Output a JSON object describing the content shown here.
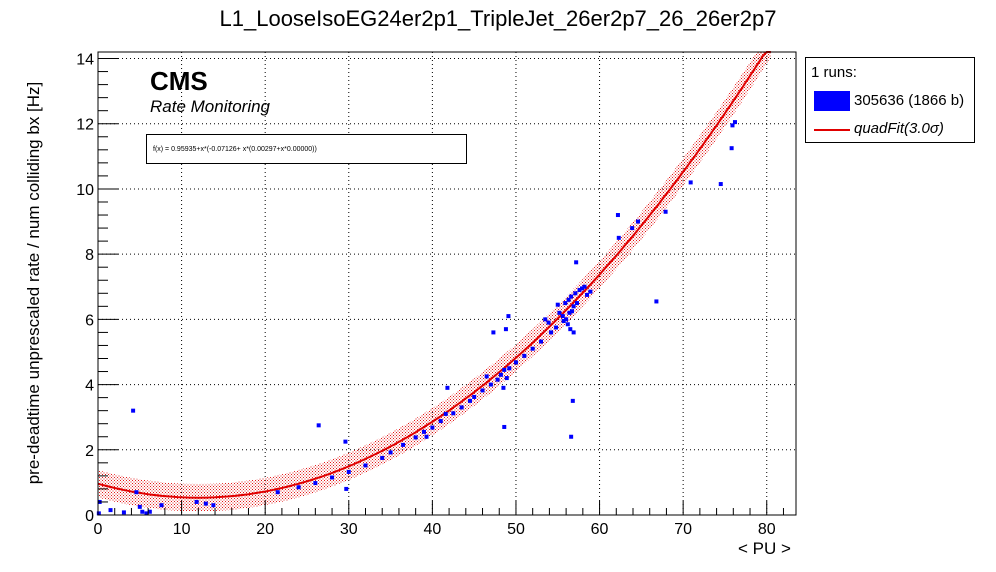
{
  "title": "L1_LooseIsoEG24er2p1_TripleJet_26er2p7_26_26er2p7",
  "cms_label": "CMS",
  "cms_sublabel": "Rate Monitoring",
  "fit_formula": "f(x) = 0.95935+x*(-0.07126+ x*(0.00297+x*0.00000))",
  "legend": {
    "header": "1 runs:",
    "entries": [
      {
        "label": "305636 (1866 b)",
        "color": "#0000ff"
      },
      {
        "label": "quadFit(3.0σ)",
        "color": "#e00000"
      }
    ]
  },
  "chart_data": {
    "type": "scatter",
    "xlabel": "< PU >",
    "ylabel": "pre-deadtime unprescaled rate / num colliding bx [Hz]",
    "xlim": [
      0,
      83.5
    ],
    "ylim": [
      0,
      14.2
    ],
    "xticks": [
      0,
      10,
      20,
      30,
      40,
      50,
      60,
      70,
      80
    ],
    "yticks": [
      0,
      2,
      4,
      6,
      8,
      10,
      12,
      14
    ],
    "grid": true,
    "fit": {
      "name": "quadFit(3.0σ)",
      "a": 0.95935,
      "b": -0.07126,
      "c": 0.00297,
      "d": 0.0,
      "band": 0.42,
      "color": "#e00000"
    },
    "series": [
      {
        "name": "305636 (1866 b)",
        "color": "#0000ff",
        "points": [
          [
            0.1,
            0.05
          ],
          [
            0.2,
            0.4
          ],
          [
            1.5,
            0.15
          ],
          [
            3.1,
            0.08
          ],
          [
            4.2,
            3.2
          ],
          [
            4.6,
            0.7
          ],
          [
            5.0,
            0.25
          ],
          [
            5.3,
            0.1
          ],
          [
            5.8,
            0.05
          ],
          [
            6.2,
            0.1
          ],
          [
            7.6,
            0.3
          ],
          [
            11.8,
            0.4
          ],
          [
            12.9,
            0.35
          ],
          [
            13.8,
            0.3
          ],
          [
            21.5,
            0.7
          ],
          [
            26.4,
            2.75
          ],
          [
            29.6,
            2.25
          ],
          [
            29.7,
            0.8
          ],
          [
            24.0,
            0.85
          ],
          [
            26.0,
            0.98
          ],
          [
            28.0,
            1.15
          ],
          [
            30.0,
            1.32
          ],
          [
            32.0,
            1.52
          ],
          [
            34.0,
            1.75
          ],
          [
            35.0,
            1.92
          ],
          [
            36.5,
            2.15
          ],
          [
            38.0,
            2.38
          ],
          [
            39.0,
            2.55
          ],
          [
            39.3,
            2.4
          ],
          [
            40.0,
            2.68
          ],
          [
            41.0,
            2.88
          ],
          [
            41.6,
            3.1
          ],
          [
            41.8,
            3.9
          ],
          [
            42.5,
            3.12
          ],
          [
            43.5,
            3.3
          ],
          [
            44.5,
            3.5
          ],
          [
            45.0,
            3.62
          ],
          [
            46.0,
            3.82
          ],
          [
            46.5,
            4.25
          ],
          [
            47.0,
            4.0
          ],
          [
            47.3,
            5.6
          ],
          [
            47.8,
            4.15
          ],
          [
            48.2,
            4.3
          ],
          [
            48.5,
            3.9
          ],
          [
            48.6,
            4.45
          ],
          [
            48.6,
            2.7
          ],
          [
            48.8,
            5.7
          ],
          [
            48.9,
            4.2
          ],
          [
            49.1,
            6.1
          ],
          [
            49.2,
            4.5
          ],
          [
            50.0,
            4.68
          ],
          [
            51.0,
            4.88
          ],
          [
            52.0,
            5.1
          ],
          [
            53.0,
            5.32
          ],
          [
            53.5,
            6.0
          ],
          [
            53.9,
            5.9
          ],
          [
            54.2,
            5.6
          ],
          [
            54.8,
            5.75
          ],
          [
            55.0,
            6.45
          ],
          [
            55.2,
            6.2
          ],
          [
            55.6,
            6.1
          ],
          [
            55.7,
            5.95
          ],
          [
            55.9,
            6.5
          ],
          [
            56.0,
            6.0
          ],
          [
            56.2,
            5.85
          ],
          [
            56.3,
            6.6
          ],
          [
            56.4,
            6.2
          ],
          [
            56.5,
            5.7
          ],
          [
            56.6,
            6.7
          ],
          [
            56.7,
            6.25
          ],
          [
            56.9,
            6.4
          ],
          [
            57.1,
            6.8
          ],
          [
            57.2,
            7.75
          ],
          [
            57.3,
            6.5
          ],
          [
            57.6,
            6.9
          ],
          [
            57.9,
            6.95
          ],
          [
            58.2,
            7.0
          ],
          [
            58.5,
            6.75
          ],
          [
            56.8,
            3.5
          ],
          [
            56.6,
            2.4
          ],
          [
            56.9,
            5.6
          ],
          [
            58.9,
            6.85
          ],
          [
            62.2,
            9.2
          ],
          [
            62.3,
            8.5
          ],
          [
            63.9,
            8.8
          ],
          [
            64.6,
            9.0
          ],
          [
            66.8,
            6.55
          ],
          [
            67.9,
            9.3
          ],
          [
            70.9,
            10.2
          ],
          [
            74.5,
            10.15
          ],
          [
            75.8,
            11.25
          ],
          [
            75.9,
            11.95
          ],
          [
            76.2,
            12.05
          ]
        ]
      }
    ]
  }
}
